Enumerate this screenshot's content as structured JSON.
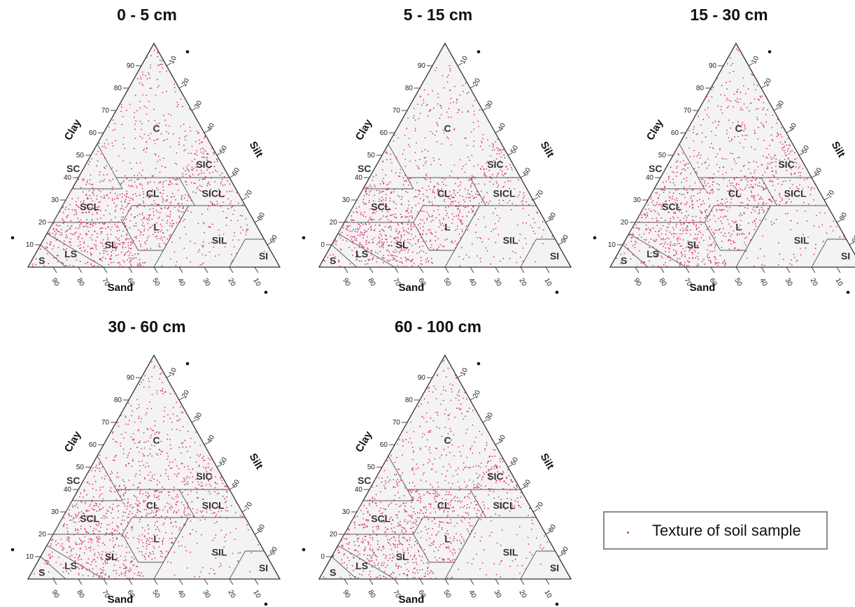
{
  "chart_data": {
    "type": "scatter",
    "variant": "soil texture triangle (ternary)",
    "axes": {
      "clay": "Clay",
      "silt": "Silt",
      "sand": "Sand"
    },
    "ticks": {
      "clay": [
        "10",
        "20",
        "30",
        "40",
        "50",
        "60",
        "70",
        "80",
        "90"
      ],
      "silt": [
        "10",
        "20",
        "30",
        "40",
        "50",
        "60",
        "70",
        "80",
        "90"
      ],
      "sand": [
        "90",
        "80",
        "70",
        "60",
        "50",
        "40",
        "30",
        "20",
        "10"
      ]
    },
    "texture_classes": [
      "C",
      "SIC",
      "SC",
      "CL",
      "SICL",
      "SCL",
      "L",
      "SIL",
      "SL",
      "LS",
      "S",
      "SI"
    ],
    "point_color": "#d6337a",
    "panel_background": "#f3f3f3",
    "panels": [
      {
        "title": "0 - 5 cm",
        "first_clay_tick": "10",
        "density": {
          "C": 220,
          "SIC": 45,
          "SC": 40,
          "CL": 120,
          "SICL": 60,
          "SCL": 150,
          "L": 140,
          "SIL": 90,
          "SL": 260,
          "LS": 40,
          "S": 10,
          "SI": 2
        }
      },
      {
        "title": "5 - 15 cm",
        "first_clay_tick": "0",
        "density": {
          "C": 190,
          "SIC": 40,
          "SC": 45,
          "CL": 120,
          "SICL": 55,
          "SCL": 150,
          "L": 130,
          "SIL": 70,
          "SL": 270,
          "LS": 45,
          "S": 12,
          "SI": 2
        }
      },
      {
        "title": "15 - 30 cm",
        "first_clay_tick": "10",
        "density": {
          "C": 260,
          "SIC": 45,
          "SC": 50,
          "CL": 140,
          "SICL": 50,
          "SCL": 160,
          "L": 120,
          "SIL": 60,
          "SL": 240,
          "LS": 40,
          "S": 10,
          "SI": 2
        }
      },
      {
        "title": "30 - 60 cm",
        "first_clay_tick": "10",
        "density": {
          "C": 280,
          "SIC": 50,
          "SC": 50,
          "CL": 140,
          "SICL": 55,
          "SCL": 150,
          "L": 110,
          "SIL": 60,
          "SL": 220,
          "LS": 35,
          "S": 8,
          "SI": 2
        }
      },
      {
        "title": "60 - 100 cm",
        "first_clay_tick": "0",
        "density": {
          "C": 260,
          "SIC": 50,
          "SC": 45,
          "CL": 130,
          "SICL": 50,
          "SCL": 150,
          "L": 110,
          "SIL": 55,
          "SL": 230,
          "LS": 40,
          "S": 10,
          "SI": 2
        }
      }
    ],
    "legend": {
      "label": "Texture of soil sample"
    }
  }
}
